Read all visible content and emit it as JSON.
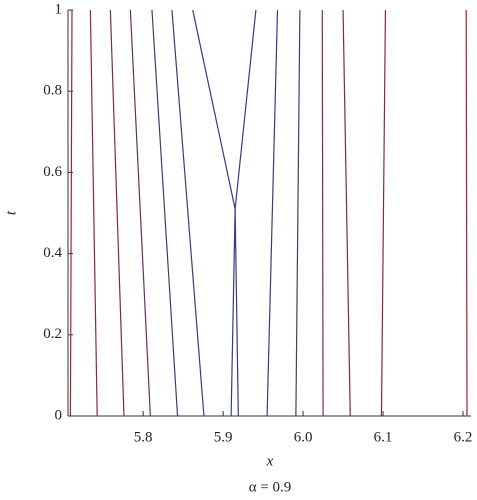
{
  "chart_data": {
    "type": "line",
    "x_label": "x",
    "y_label": "t",
    "caption": "α = 0.9",
    "xlim": [
      5.706,
      6.21
    ],
    "ylim": [
      0,
      1
    ],
    "xticks": [
      5.8,
      5.9,
      {
        "value": 6,
        "label": "6.0"
      },
      6.1,
      6.2
    ],
    "yticks": [
      0,
      0.2,
      0.4,
      0.6,
      0.8,
      1
    ],
    "series": [
      {
        "color": "#a3222e",
        "x": [
          5.709,
          5.711
        ],
        "values": [
          0,
          1
        ]
      },
      {
        "color": "#8f2540",
        "x": [
          5.7425,
          5.734
        ],
        "values": [
          0,
          1
        ]
      },
      {
        "color": "#7c2a52",
        "x": [
          5.776,
          5.759
        ],
        "values": [
          0,
          1
        ]
      },
      {
        "color": "#692f63",
        "x": [
          5.809,
          5.784
        ],
        "values": [
          0,
          1
        ]
      },
      {
        "color": "#553372",
        "x": [
          5.843,
          5.811
        ],
        "values": [
          0,
          1
        ]
      },
      {
        "color": "#44377c",
        "x": [
          5.876,
          5.836
        ],
        "values": [
          0,
          1
        ]
      },
      {
        "color": "#343a86",
        "x": [
          5.91,
          5.915,
          5.862
        ],
        "values": [
          0,
          0.51,
          1
        ]
      },
      {
        "color": "#343a86",
        "x": [
          5.919,
          5.915,
          5.941
        ],
        "values": [
          0,
          0.51,
          1
        ]
      },
      {
        "color": "#44377c",
        "x": [
          5.955,
          5.968
        ],
        "values": [
          0,
          1
        ]
      },
      {
        "color": "#553372",
        "x": [
          5.991,
          5.996
        ],
        "values": [
          0,
          1
        ]
      },
      {
        "color": "#692f63",
        "x": [
          6.025,
          6.024
        ],
        "values": [
          0,
          1
        ]
      },
      {
        "color": "#7c2a52",
        "x": [
          6.059,
          6.05
        ],
        "values": [
          0,
          1
        ]
      },
      {
        "color": "#8f2540",
        "x": [
          6.098,
          6.103
        ],
        "values": [
          0,
          1
        ]
      },
      {
        "color": "#a3222e",
        "x": [
          6.205,
          6.204
        ],
        "values": [
          0,
          1
        ]
      }
    ]
  }
}
